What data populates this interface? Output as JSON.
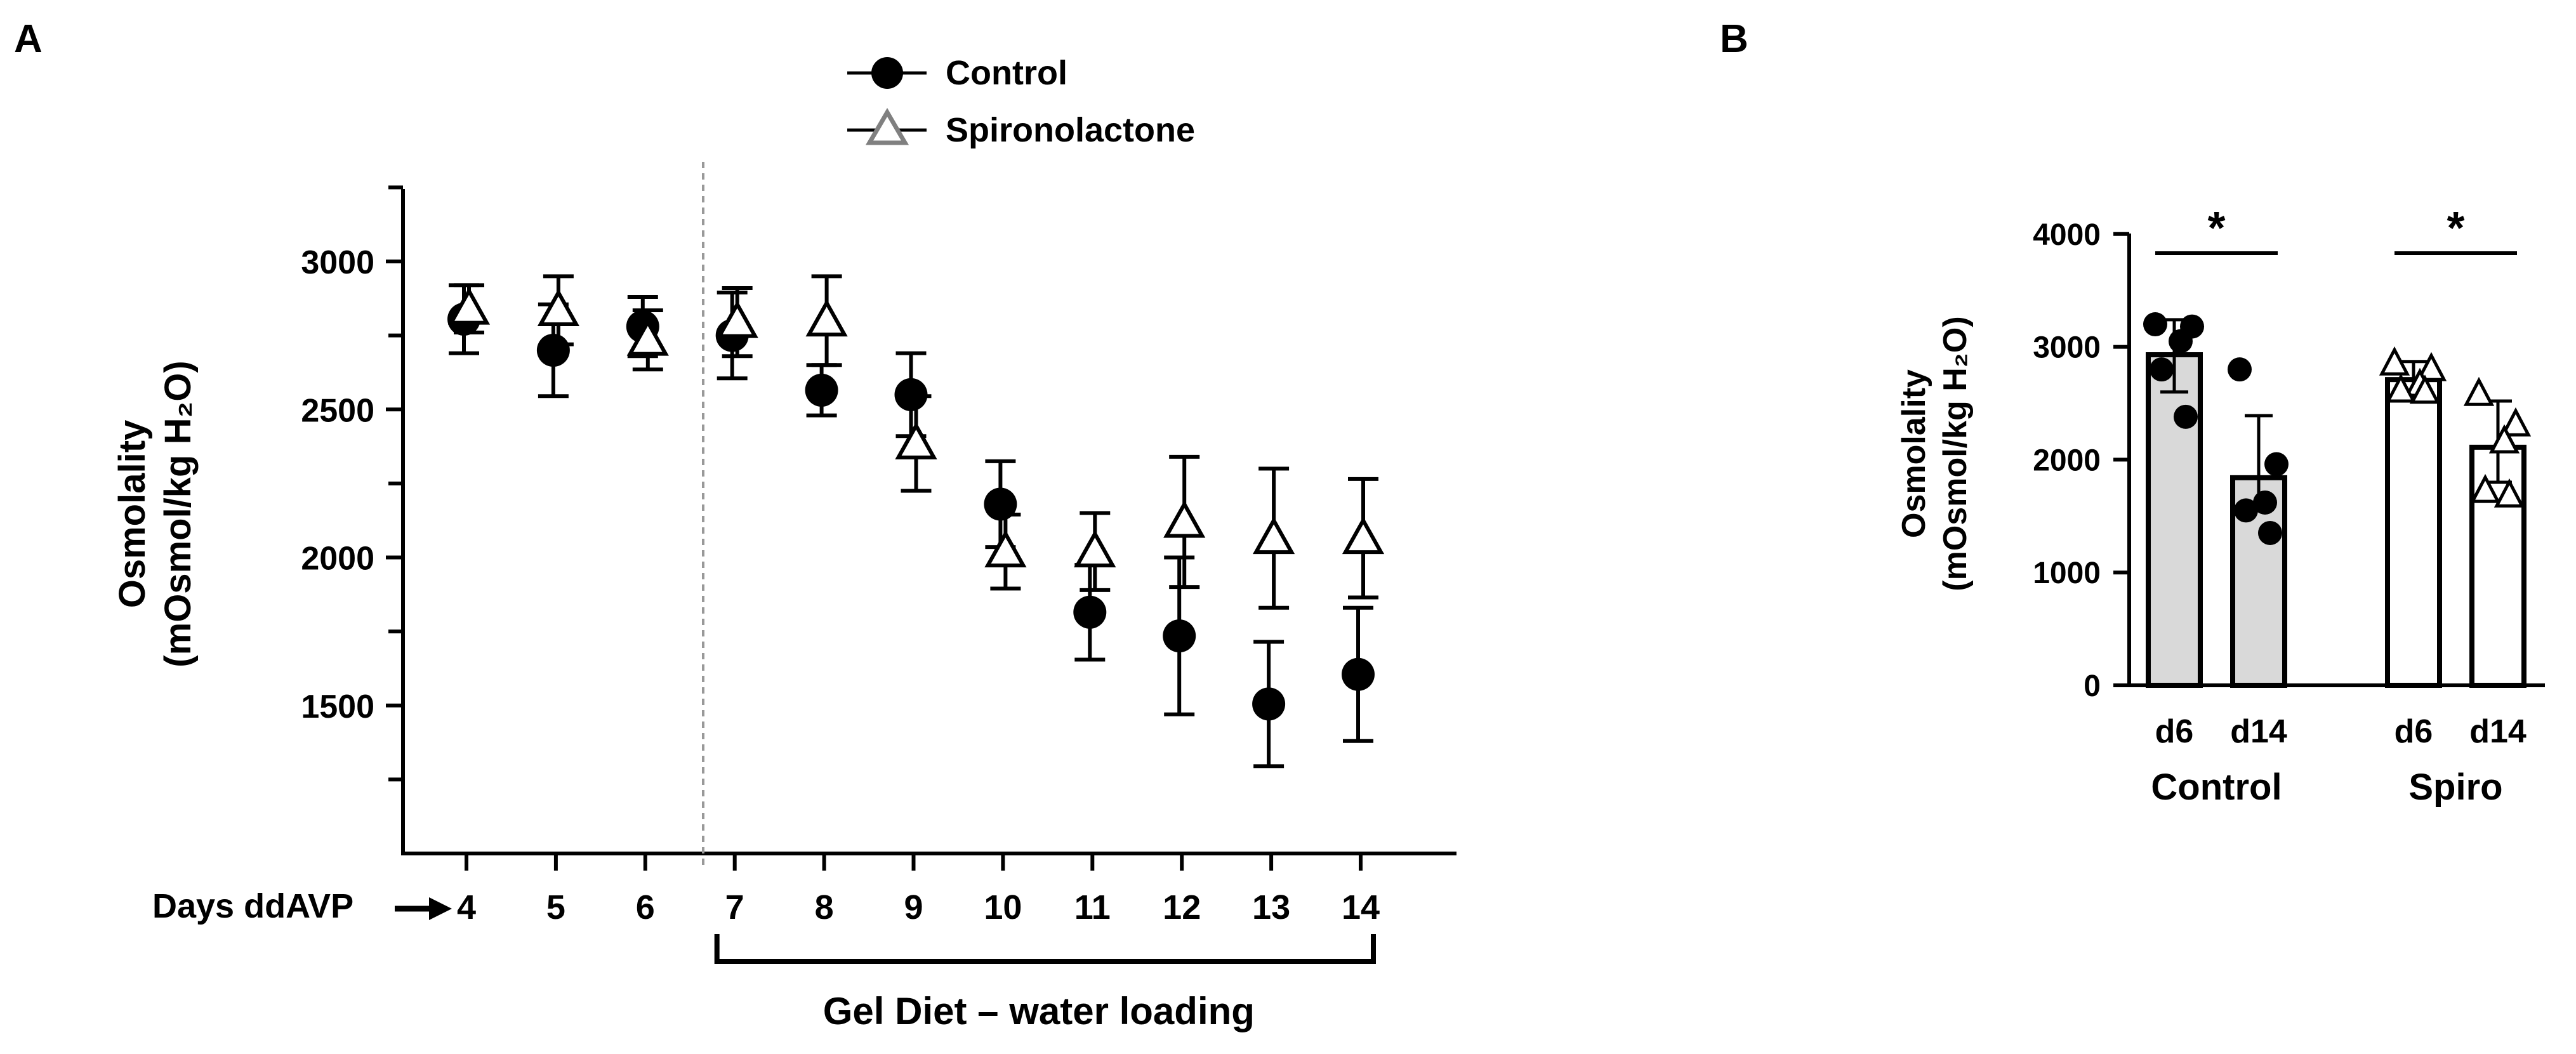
{
  "panels": {
    "a_label": "A",
    "b_label": "B"
  },
  "chart_data": [
    {
      "type": "scatter",
      "panel": "A",
      "title": "",
      "xlabel": "Days ddAVP",
      "ylabel_line1": "Osmolality",
      "ylabel_line2": "(mOsmol/kg H₂O)",
      "categories": [
        "4",
        "5",
        "6",
        "7",
        "8",
        "9",
        "10",
        "11",
        "12",
        "13",
        "14"
      ],
      "ylim": [
        1000,
        3250
      ],
      "yticks": [
        1500,
        2000,
        2500,
        3000
      ],
      "ytick_labels": [
        "1500",
        "2000",
        "2500",
        "3000"
      ],
      "yminor_ticks": [
        1250,
        1750,
        2250,
        2750,
        3250
      ],
      "divider_after_category": "6",
      "bracket_label": "Gel Diet – water loading",
      "bracket_from": "7",
      "bracket_to": "14",
      "series": [
        {
          "name": "Control",
          "marker": "filled-circle",
          "color": "#000000",
          "values": [
            2805,
            2700,
            2780,
            2750,
            2565,
            2550,
            2180,
            1815,
            1735,
            1505,
            1605
          ],
          "err": [
            115,
            155,
            100,
            145,
            85,
            140,
            145,
            160,
            265,
            210,
            225
          ]
        },
        {
          "name": "Spironolactone",
          "marker": "open-triangle",
          "color": "#000000",
          "values": [
            2840,
            2835,
            2735,
            2795,
            2800,
            2385,
            2020,
            2020,
            2120,
            2065,
            2065
          ],
          "err": [
            80,
            115,
            100,
            115,
            150,
            160,
            125,
            130,
            220,
            235,
            200
          ]
        }
      ],
      "legend": [
        "Control",
        "Spironolactone"
      ],
      "legend_position": "top-center"
    },
    {
      "type": "bar",
      "panel": "B",
      "title": "",
      "ylabel_line1": "Osmolality",
      "ylabel_line2": "(mOsmol/kg H₂O)",
      "ylim": [
        0,
        4000
      ],
      "yticks": [
        0,
        1000,
        2000,
        3000,
        4000
      ],
      "ytick_labels": [
        "0",
        "1000",
        "2000",
        "3000",
        "4000"
      ],
      "groups": [
        "Control",
        "Spiro"
      ],
      "categories": [
        "d6",
        "d14",
        "d6",
        "d14"
      ],
      "bar_colors": [
        "#d9d9d9",
        "#d9d9d9",
        "#ffffff",
        "#ffffff"
      ],
      "values": [
        2930,
        1840,
        2710,
        2110
      ],
      "err_low": [
        2600,
        1580,
        2560,
        1800
      ],
      "err_high": [
        3240,
        2390,
        2870,
        2520
      ],
      "points": [
        [
          3200,
          3180,
          3050,
          2800,
          2380
        ],
        [
          2800,
          1960,
          1620,
          1550,
          1350
        ],
        [
          2850,
          2800,
          2660,
          2610,
          2600
        ],
        [
          2580,
          2310,
          2160,
          1720,
          1680
        ]
      ],
      "point_markers": [
        "filled-circle",
        "filled-circle",
        "open-triangle",
        "open-triangle"
      ],
      "significance": [
        {
          "from": 0,
          "to": 1,
          "label": "*",
          "y": 3830
        },
        {
          "from": 2,
          "to": 3,
          "label": "*",
          "y": 3830
        }
      ]
    }
  ]
}
